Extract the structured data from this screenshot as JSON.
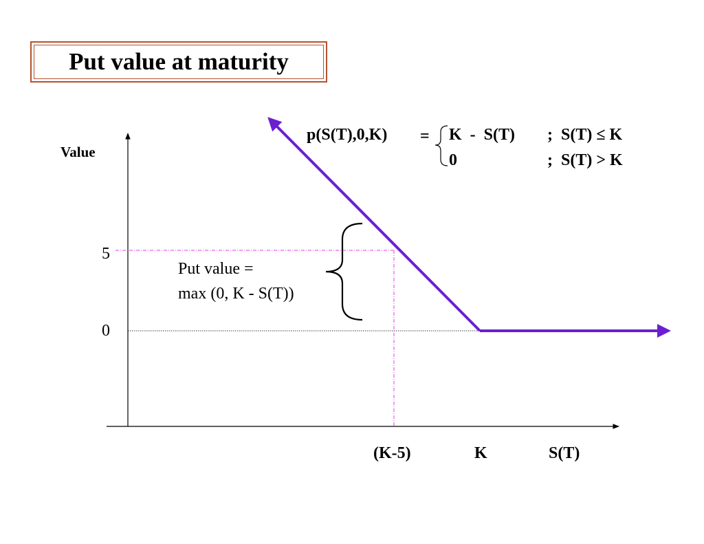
{
  "title": "Put value at maturity",
  "axes": {
    "y_label": "Value",
    "x_label": "S(T)",
    "y_ticks": [
      "5",
      "0"
    ],
    "x_ticks": [
      "(K-5)",
      "K"
    ]
  },
  "formula": {
    "lhs": "p(S(T),0,K)",
    "equals": "=",
    "case1_expr": "K  -  S(T)",
    "case1_cond": ";  S(T) ≤ K",
    "case2_expr": "0",
    "case2_cond": ";  S(T) > K"
  },
  "annotation": {
    "line1": "Put value =",
    "line2": "max (0, K - S(T))"
  },
  "colors": {
    "payoff_line": "#6b1fd1",
    "guide_line": "#e23ee0",
    "title_border": "#b5522c"
  }
}
